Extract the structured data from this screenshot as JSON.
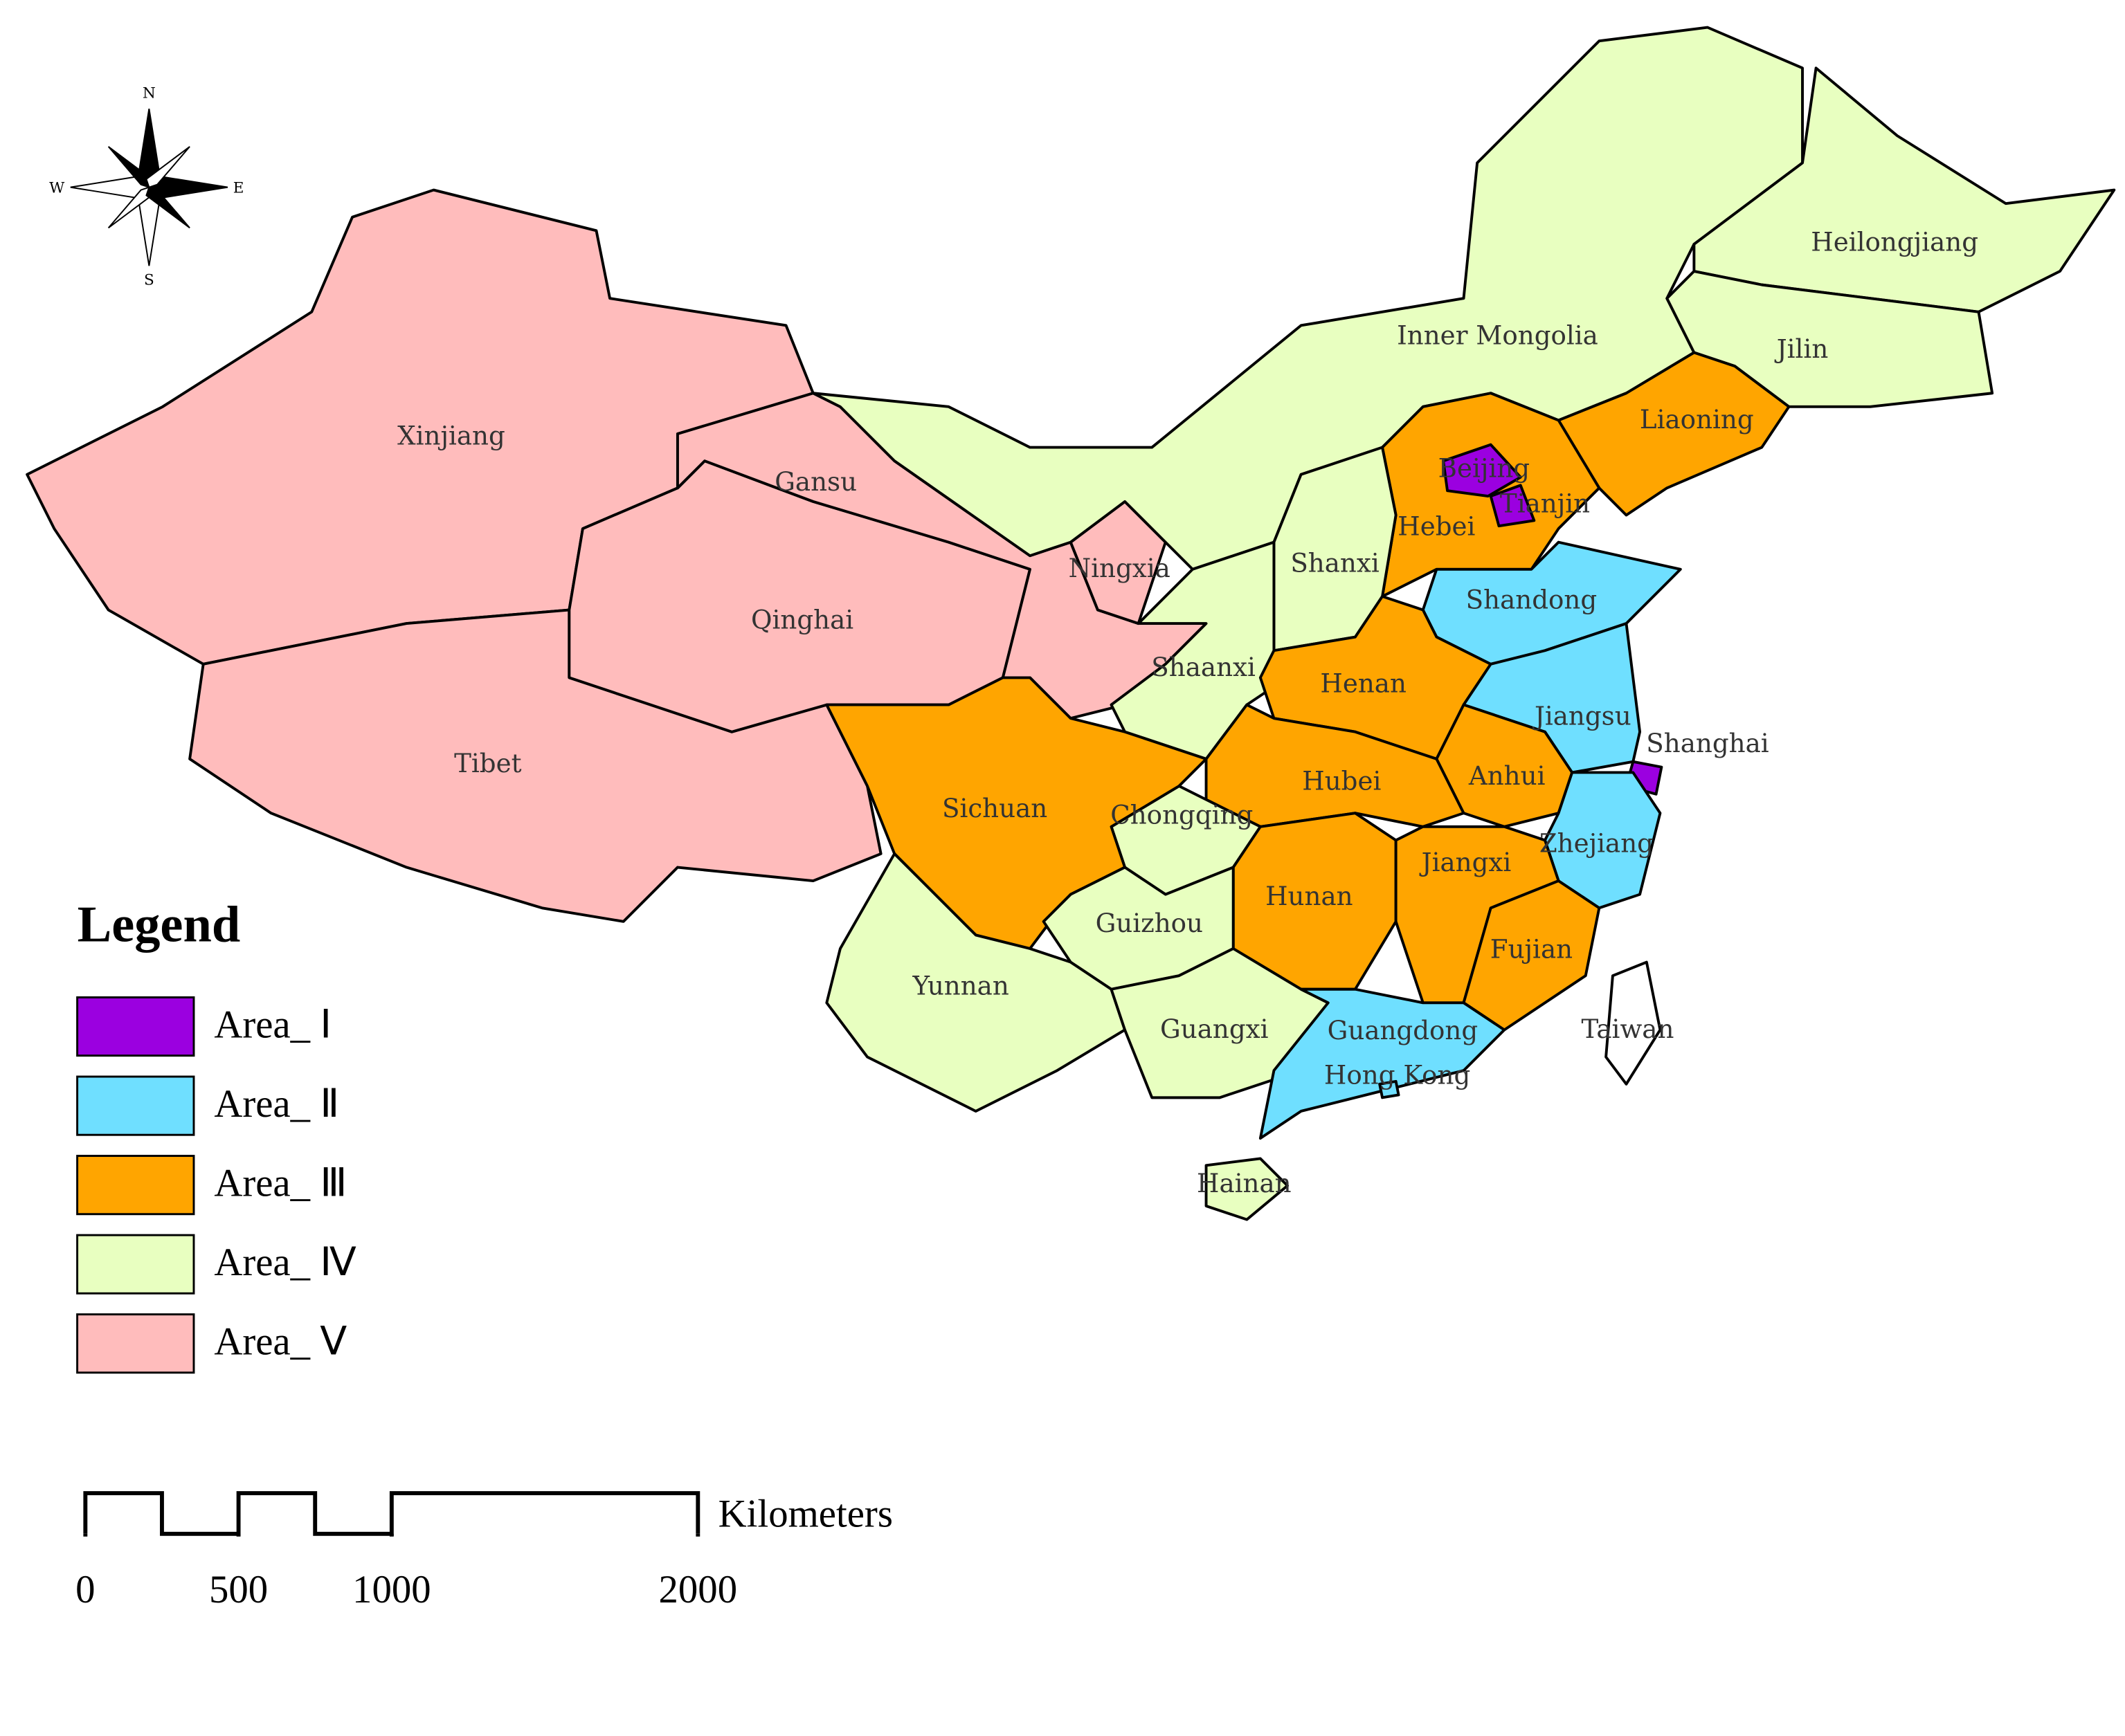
{
  "compass": {
    "n": "N",
    "s": "S",
    "e": "E",
    "w": "W"
  },
  "legend": {
    "title": "Legend",
    "items": [
      {
        "label": "Area_ Ⅰ",
        "color": "#9b00e0"
      },
      {
        "label": "Area_ Ⅱ",
        "color": "#6fdfff"
      },
      {
        "label": "Area_ Ⅲ",
        "color": "#ffa500"
      },
      {
        "label": "Area_ Ⅳ",
        "color": "#e8ffc0"
      },
      {
        "label": "Area_ Ⅴ",
        "color": "#ffbcbc"
      }
    ]
  },
  "scale_bar": {
    "unit": "Kilometers",
    "ticks": [
      0,
      500,
      1000,
      2000
    ]
  },
  "provinces": [
    {
      "name": "Xinjiang",
      "area": 5
    },
    {
      "name": "Tibet",
      "area": 5
    },
    {
      "name": "Qinghai",
      "area": 5
    },
    {
      "name": "Gansu",
      "area": 5
    },
    {
      "name": "Ningxia",
      "area": 5
    },
    {
      "name": "Inner Mongolia",
      "area": 4
    },
    {
      "name": "Heilongjiang",
      "area": 4
    },
    {
      "name": "Jilin",
      "area": 4
    },
    {
      "name": "Liaoning",
      "area": 3
    },
    {
      "name": "Hebei",
      "area": 3
    },
    {
      "name": "Beijing",
      "area": 1
    },
    {
      "name": "Tianjin",
      "area": 1
    },
    {
      "name": "Shanxi",
      "area": 4
    },
    {
      "name": "Shaanxi",
      "area": 4
    },
    {
      "name": "Shandong",
      "area": 2
    },
    {
      "name": "Henan",
      "area": 3
    },
    {
      "name": "Jiangsu",
      "area": 2
    },
    {
      "name": "Anhui",
      "area": 3
    },
    {
      "name": "Shanghai",
      "area": 1
    },
    {
      "name": "Hubei",
      "area": 3
    },
    {
      "name": "Zhejiang",
      "area": 2
    },
    {
      "name": "Chongqing",
      "area": 4
    },
    {
      "name": "Sichuan",
      "area": 3
    },
    {
      "name": "Hunan",
      "area": 3
    },
    {
      "name": "Jiangxi",
      "area": 3
    },
    {
      "name": "Fujian",
      "area": 3
    },
    {
      "name": "Guizhou",
      "area": 4
    },
    {
      "name": "Yunnan",
      "area": 4
    },
    {
      "name": "Guangxi",
      "area": 4
    },
    {
      "name": "Guangdong",
      "area": 2
    },
    {
      "name": "Hong Kong",
      "area": 2
    },
    {
      "name": "Hainan",
      "area": 4
    },
    {
      "name": "Taiwan"
    }
  ]
}
